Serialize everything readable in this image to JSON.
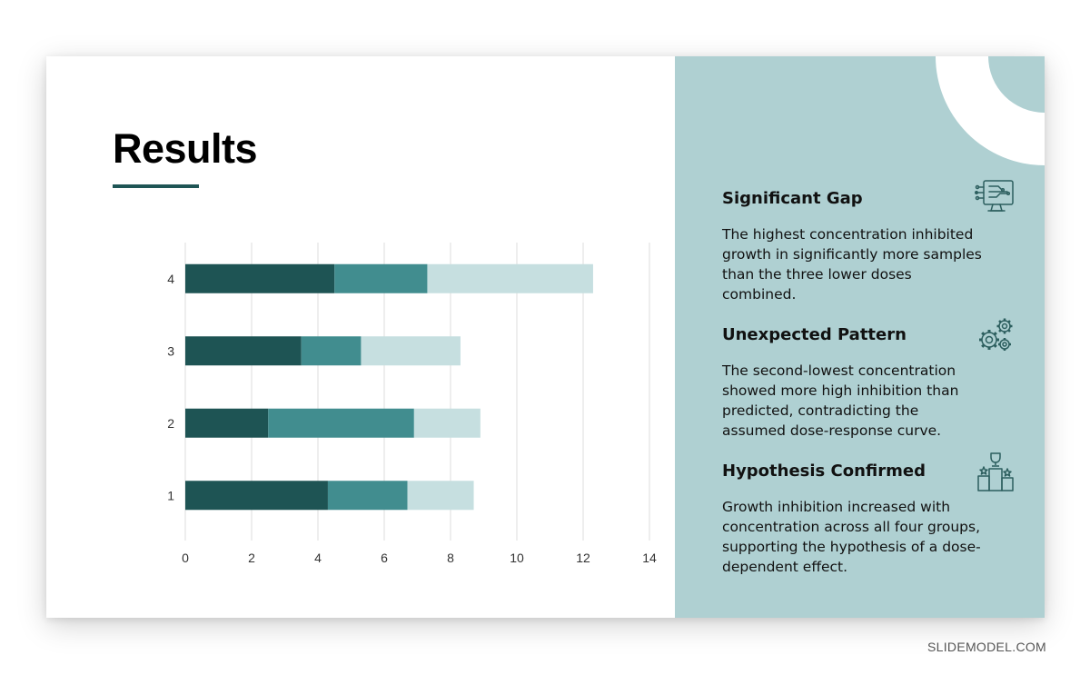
{
  "slide": {
    "title": "Results"
  },
  "chart_data": {
    "type": "bar",
    "orientation": "horizontal",
    "stacked": true,
    "categories": [
      "1",
      "2",
      "3",
      "4"
    ],
    "series": [
      {
        "color": "#1e5454",
        "values": [
          4.3,
          2.5,
          3.5,
          4.5
        ]
      },
      {
        "color": "#418d8f",
        "values": [
          2.4,
          4.4,
          1.8,
          2.8
        ]
      },
      {
        "color": "#c6dfe0",
        "values": [
          2.0,
          2.0,
          3.0,
          5.0
        ]
      }
    ],
    "xlim": [
      0,
      14
    ],
    "xticks": [
      "0",
      "2",
      "4",
      "6",
      "8",
      "10",
      "12",
      "14"
    ],
    "grid": "vertical",
    "legend": "none"
  },
  "panel": {
    "items": [
      {
        "heading": "Significant Gap",
        "text": "The highest concentration inhibited growth in significantly more samples than the three lower doses combined.",
        "icon": "computer-chip-icon"
      },
      {
        "heading": "Unexpected Pattern",
        "text": "The second-lowest concentration showed more high inhibition than predicted, contradicting the assumed dose-response curve.",
        "icon": "gears-icon"
      },
      {
        "heading": "Hypothesis Confirmed",
        "text": "Growth inhibition increased with concentration across all four groups, supporting the hypothesis of a dose-dependent effect.",
        "icon": "podium-trophy-icon"
      }
    ]
  },
  "colors": {
    "accent": "#1f5555",
    "panel": "#afd0d2"
  },
  "watermark": "SLIDEMODEL.COM"
}
